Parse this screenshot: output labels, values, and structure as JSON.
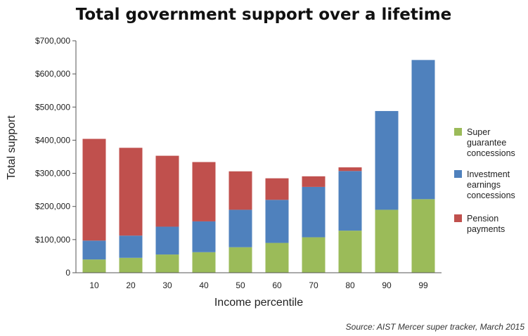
{
  "chart_data": {
    "type": "bar",
    "stacked": true,
    "title": "Total government support over a lifetime",
    "xlabel": "Income percentile",
    "ylabel": "Total support",
    "categories": [
      "10",
      "20",
      "30",
      "40",
      "50",
      "60",
      "70",
      "80",
      "90",
      "99"
    ],
    "ylim": [
      0,
      700000
    ],
    "yticks": [
      {
        "value": 0,
        "label": "0"
      },
      {
        "value": 100000,
        "label": "$100,000"
      },
      {
        "value": 200000,
        "label": "$200,000"
      },
      {
        "value": 300000,
        "label": "$300,000"
      },
      {
        "value": 400000,
        "label": "$400,000"
      },
      {
        "value": 500000,
        "label": "$500,000"
      },
      {
        "value": 600000,
        "label": "$600,000"
      },
      {
        "value": 700000,
        "label": "$700,000"
      }
    ],
    "series": [
      {
        "name": "Super guarantee concessions",
        "legend_lines": [
          "Super",
          "guarantee",
          "concessions"
        ],
        "color": "#9bbb59",
        "values": [
          40000,
          45000,
          55000,
          62000,
          77000,
          90000,
          107000,
          127000,
          190000,
          222000
        ]
      },
      {
        "name": "Investment earnings concessions",
        "legend_lines": [
          "Investment",
          "earnings",
          "concessions"
        ],
        "color": "#4f81bd",
        "values": [
          57000,
          67000,
          84000,
          93000,
          113000,
          130000,
          152000,
          180000,
          298000,
          420000
        ]
      },
      {
        "name": "Pension payments",
        "legend_lines": [
          "Pension",
          "payments"
        ],
        "color": "#c0504d",
        "values": [
          307000,
          265000,
          214000,
          179000,
          116000,
          65000,
          32000,
          11000,
          0,
          0
        ]
      }
    ],
    "legend_position": "right",
    "grid": false
  },
  "source_note": "Source: AIST Mercer super tracker, March 2015"
}
